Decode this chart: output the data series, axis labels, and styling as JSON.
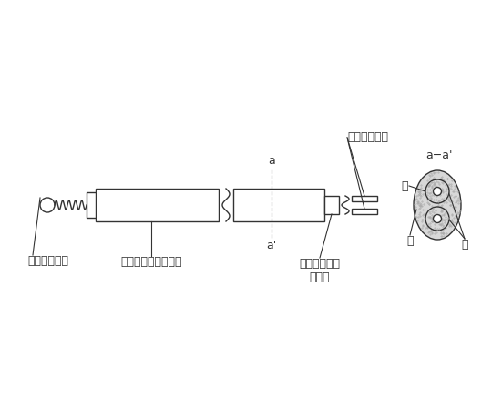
{
  "bg_color": "#ffffff",
  "line_color": "#333333",
  "font_size": 9,
  "labels": {
    "tip": "先端（溶接）",
    "outer_vinyl": "外側ビニール被覆Ⓐ",
    "a_top": "a",
    "a_bottom": "a'",
    "core_vinyl": "芯線ビニール\n被覆Ⓑ",
    "thermocouple": "熱電対素線Ⓒ",
    "cross_section": "a−a'",
    "label_C": "Ⓒ",
    "label_A": "Ⓐ",
    "label_B": "Ⓑ"
  }
}
